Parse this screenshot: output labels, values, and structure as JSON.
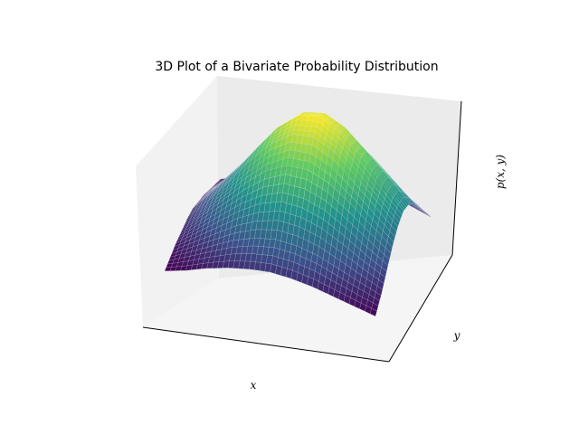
{
  "chart_data": {
    "type": "surface",
    "title": "3D Plot of a Bivariate Probability Distribution",
    "xlabel": "x",
    "ylabel": "y",
    "zlabel": "p(x, y)",
    "ticks_visible": false,
    "grid": false,
    "colormap": "viridis",
    "colormap_stops": [
      "#440154",
      "#3b528b",
      "#21918c",
      "#5ec962",
      "#fde725"
    ],
    "surface": {
      "function": "Gaussian-like bump with a long, slow tail",
      "x": [
        0.0,
        0.1,
        0.2,
        0.3,
        0.4,
        0.5,
        0.6,
        0.7,
        0.8,
        0.9,
        1.0
      ],
      "y": [
        0.0,
        0.1,
        0.2,
        0.3,
        0.4,
        0.5,
        0.6,
        0.7,
        0.8,
        0.9,
        1.0
      ],
      "z": [
        [
          0.17,
          0.2,
          0.23,
          0.25,
          0.27,
          0.28,
          0.27,
          0.26,
          0.24,
          0.22,
          0.2
        ],
        [
          0.2,
          0.26,
          0.32,
          0.37,
          0.4,
          0.41,
          0.4,
          0.37,
          0.33,
          0.29,
          0.24
        ],
        [
          0.24,
          0.32,
          0.41,
          0.49,
          0.54,
          0.55,
          0.54,
          0.49,
          0.43,
          0.36,
          0.29
        ],
        [
          0.27,
          0.38,
          0.5,
          0.61,
          0.69,
          0.71,
          0.69,
          0.62,
          0.53,
          0.43,
          0.33
        ],
        [
          0.29,
          0.42,
          0.57,
          0.71,
          0.82,
          0.86,
          0.83,
          0.74,
          0.62,
          0.49,
          0.36
        ],
        [
          0.3,
          0.44,
          0.61,
          0.77,
          0.9,
          0.96,
          0.93,
          0.82,
          0.68,
          0.53,
          0.38
        ],
        [
          0.29,
          0.43,
          0.6,
          0.77,
          0.91,
          0.98,
          0.95,
          0.84,
          0.69,
          0.53,
          0.38
        ],
        [
          0.27,
          0.4,
          0.56,
          0.72,
          0.85,
          0.91,
          0.89,
          0.79,
          0.65,
          0.5,
          0.36
        ],
        [
          0.24,
          0.35,
          0.49,
          0.63,
          0.74,
          0.8,
          0.78,
          0.7,
          0.58,
          0.45,
          0.33
        ],
        [
          0.21,
          0.3,
          0.41,
          0.53,
          0.62,
          0.67,
          0.66,
          0.59,
          0.49,
          0.39,
          0.29
        ],
        [
          0.18,
          0.25,
          0.34,
          0.43,
          0.5,
          0.54,
          0.53,
          0.48,
          0.41,
          0.33,
          0.25
        ]
      ]
    }
  }
}
